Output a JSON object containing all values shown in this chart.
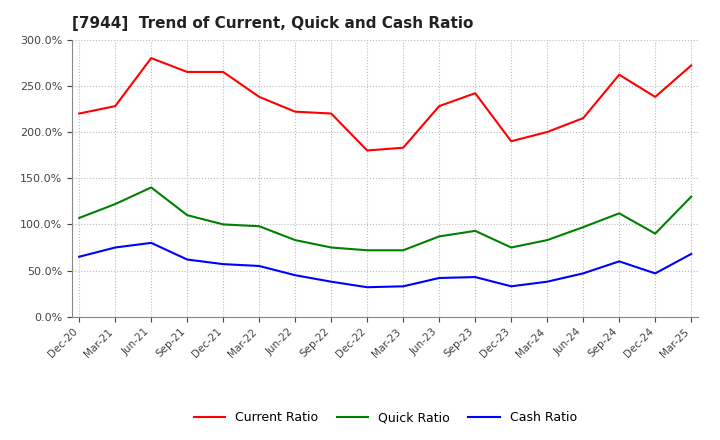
{
  "title": "[7944]  Trend of Current, Quick and Cash Ratio",
  "labels": [
    "Dec-20",
    "Mar-21",
    "Jun-21",
    "Sep-21",
    "Dec-21",
    "Mar-22",
    "Jun-22",
    "Sep-22",
    "Dec-22",
    "Mar-23",
    "Jun-23",
    "Sep-23",
    "Dec-23",
    "Mar-24",
    "Jun-24",
    "Sep-24",
    "Dec-24",
    "Mar-25"
  ],
  "current_ratio": [
    220,
    228,
    280,
    265,
    265,
    238,
    222,
    220,
    180,
    183,
    228,
    242,
    190,
    200,
    215,
    262,
    238,
    272
  ],
  "quick_ratio": [
    107,
    122,
    140,
    110,
    100,
    98,
    83,
    75,
    72,
    72,
    87,
    93,
    75,
    83,
    97,
    112,
    90,
    130
  ],
  "cash_ratio": [
    65,
    75,
    80,
    62,
    57,
    55,
    45,
    38,
    32,
    33,
    42,
    43,
    33,
    38,
    47,
    60,
    47,
    68
  ],
  "current_color": "#FF0000",
  "quick_color": "#008000",
  "cash_color": "#0000FF",
  "ylim": [
    0,
    300
  ],
  "yticks": [
    0,
    50,
    100,
    150,
    200,
    250,
    300
  ],
  "ytick_labels": [
    "0.0%",
    "50.0%",
    "100.0%",
    "150.0%",
    "200.0%",
    "250.0%",
    "300.0%"
  ],
  "bg_color": "#FFFFFF",
  "plot_bg_color": "#FFFFFF",
  "grid_color": "#BBBBBB",
  "legend_labels": [
    "Current Ratio",
    "Quick Ratio",
    "Cash Ratio"
  ]
}
